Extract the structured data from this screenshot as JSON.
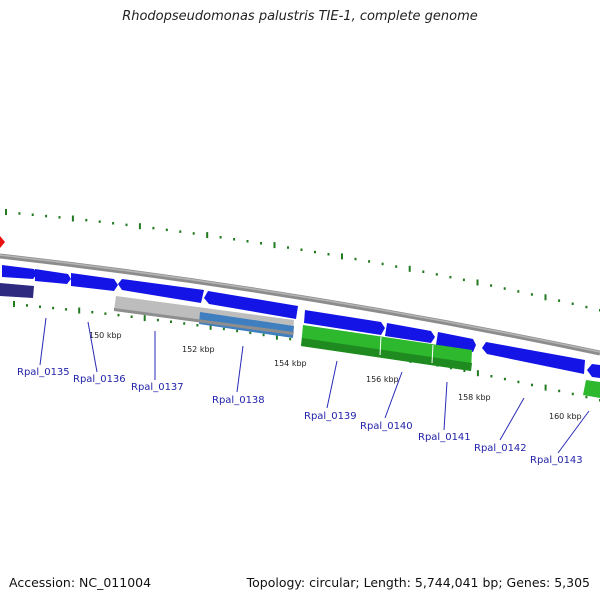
{
  "title": "Rhodopseudomonas palustris TIE-1, complete genome",
  "accession": "Accession: NC_011004",
  "summary": "Topology: circular; Length: 5,744,041 bp; Genes: 5,305",
  "colors": {
    "backbone": "#8c8c8c",
    "cds": "#1414e6",
    "cds_dark": "#2e2a80",
    "rna_green": "#2db82d",
    "gray": "#bdbdbd",
    "steelblue": "#3f7fbf",
    "tick": "#207a20",
    "label": "#1f1fa8",
    "marker": "#e81010"
  },
  "ticks": [
    {
      "label": "150 kbp"
    },
    {
      "label": "152 kbp"
    },
    {
      "label": "154 kbp"
    },
    {
      "label": "156 kbp"
    },
    {
      "label": "158 kbp"
    },
    {
      "label": "160 kbp"
    }
  ],
  "genes": [
    {
      "label": "Rpal_0135"
    },
    {
      "label": "Rpal_0136"
    },
    {
      "label": "Rpal_0137"
    },
    {
      "label": "Rpal_0138"
    },
    {
      "label": "Rpal_0139"
    },
    {
      "label": "Rpal_0140"
    },
    {
      "label": "Rpal_0141"
    },
    {
      "label": "Rpal_0142"
    },
    {
      "label": "Rpal_0143"
    }
  ]
}
